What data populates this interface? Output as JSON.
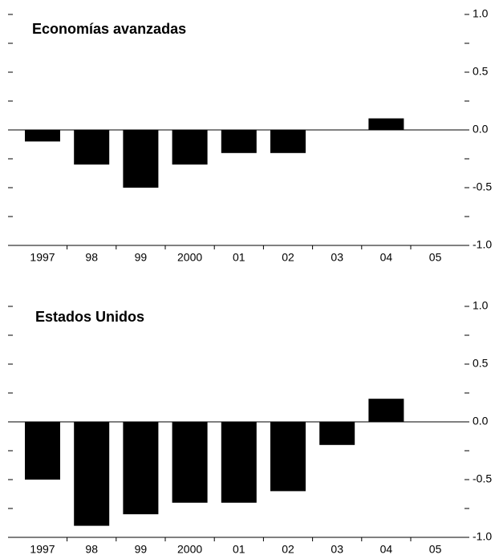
{
  "chart_data": [
    {
      "type": "bar",
      "title": "Economías avanzadas",
      "categories": [
        "1997",
        "98",
        "99",
        "2000",
        "01",
        "02",
        "03",
        "04",
        "05"
      ],
      "values": [
        -0.1,
        -0.3,
        -0.5,
        -0.3,
        -0.2,
        -0.2,
        0.0,
        0.1,
        0.0
      ],
      "ylim": [
        -1.0,
        1.0
      ],
      "yticks": [
        "1.0",
        "0.5",
        "0.0",
        "-0.5",
        "-1.0"
      ],
      "xlabel": "",
      "ylabel": "",
      "grid": false,
      "bar_color": "#000000"
    },
    {
      "type": "bar",
      "title": "Estados Unidos",
      "categories": [
        "1997",
        "98",
        "99",
        "2000",
        "01",
        "02",
        "03",
        "04",
        "05"
      ],
      "values": [
        -0.5,
        -0.9,
        -0.8,
        -0.7,
        -0.7,
        -0.6,
        -0.2,
        0.2,
        0.0
      ],
      "ylim": [
        -1.0,
        1.0
      ],
      "yticks": [
        "1.0",
        "0.5",
        "0.0",
        "-0.5",
        "-1.0"
      ],
      "xlabel": "",
      "ylabel": "",
      "grid": false,
      "bar_color": "#000000"
    }
  ]
}
